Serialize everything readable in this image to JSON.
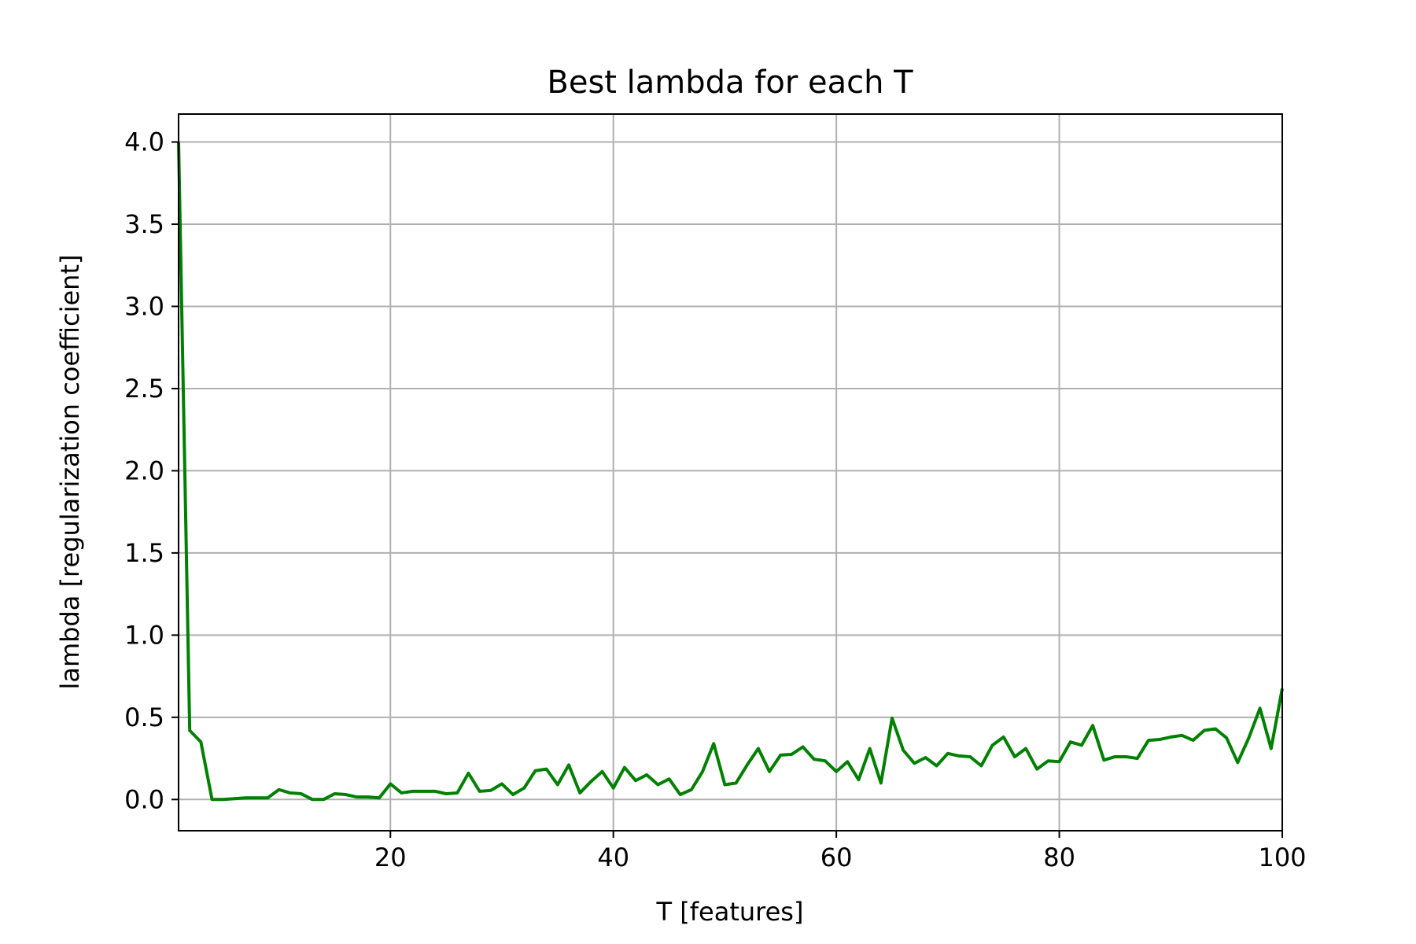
{
  "chart_data": {
    "type": "line",
    "title": "Best lambda for each T",
    "xlabel": "T [features]",
    "ylabel": "lambda [regularization coefficient]",
    "xlim": [
      1,
      100
    ],
    "ylim": [
      -0.19,
      4.17
    ],
    "xticks": [
      20,
      40,
      60,
      80,
      100
    ],
    "yticks": [
      0.0,
      0.5,
      1.0,
      1.5,
      2.0,
      2.5,
      3.0,
      3.5,
      4.0
    ],
    "grid": true,
    "series": [
      {
        "color": "#008000",
        "x": [
          1,
          2,
          3,
          4,
          5,
          6,
          7,
          8,
          9,
          10,
          11,
          12,
          13,
          14,
          15,
          16,
          17,
          18,
          19,
          20,
          21,
          22,
          23,
          24,
          25,
          26,
          27,
          28,
          29,
          30,
          31,
          32,
          33,
          34,
          35,
          36,
          37,
          38,
          39,
          40,
          41,
          42,
          43,
          44,
          45,
          46,
          47,
          48,
          49,
          50,
          51,
          52,
          53,
          54,
          55,
          56,
          57,
          58,
          59,
          60,
          61,
          62,
          63,
          64,
          65,
          66,
          67,
          68,
          69,
          70,
          71,
          72,
          73,
          74,
          75,
          76,
          77,
          78,
          79,
          80,
          81,
          82,
          83,
          84,
          85,
          86,
          87,
          88,
          89,
          90,
          91,
          92,
          93,
          94,
          95,
          96,
          97,
          98,
          99,
          100
        ],
        "y": [
          4.0,
          0.42,
          0.35,
          0.0,
          0.0,
          0.005,
          0.01,
          0.01,
          0.01,
          0.06,
          0.04,
          0.035,
          0.0,
          0.0,
          0.035,
          0.03,
          0.015,
          0.015,
          0.01,
          0.095,
          0.04,
          0.05,
          0.05,
          0.05,
          0.035,
          0.04,
          0.16,
          0.05,
          0.055,
          0.095,
          0.03,
          0.07,
          0.175,
          0.185,
          0.09,
          0.21,
          0.04,
          0.11,
          0.17,
          0.07,
          0.195,
          0.115,
          0.15,
          0.09,
          0.125,
          0.03,
          0.06,
          0.17,
          0.34,
          0.09,
          0.1,
          0.21,
          0.31,
          0.17,
          0.27,
          0.275,
          0.32,
          0.245,
          0.235,
          0.17,
          0.23,
          0.12,
          0.31,
          0.1,
          0.495,
          0.3,
          0.22,
          0.255,
          0.205,
          0.28,
          0.265,
          0.26,
          0.205,
          0.33,
          0.38,
          0.26,
          0.31,
          0.185,
          0.235,
          0.23,
          0.35,
          0.33,
          0.45,
          0.24,
          0.26,
          0.26,
          0.25,
          0.36,
          0.365,
          0.38,
          0.39,
          0.36,
          0.42,
          0.43,
          0.375,
          0.225,
          0.375,
          0.555,
          0.31,
          0.675
        ]
      }
    ]
  }
}
